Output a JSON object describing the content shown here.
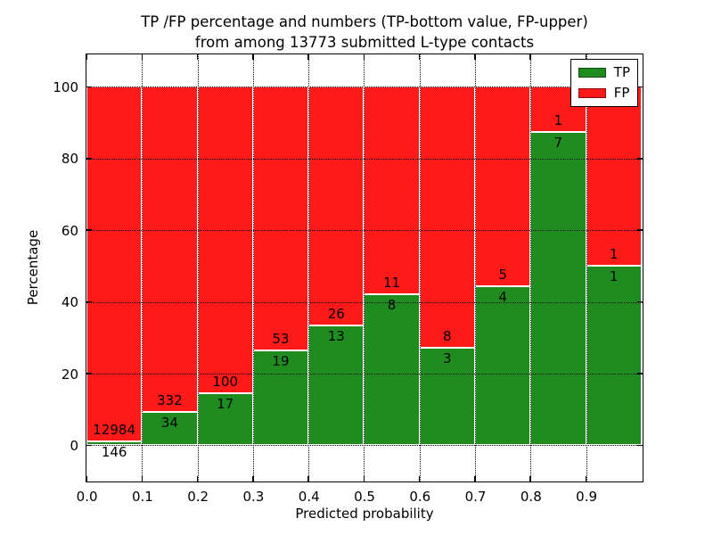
{
  "title": {
    "line1": "TP /FP percentage and numbers (TP-bottom value, FP-upper)",
    "line2": "from among 13773 submitted L-type contacts"
  },
  "axes": {
    "xlabel": "Predicted probability",
    "ylabel": "Percentage",
    "x_ticks": [
      "0.0",
      "0.1",
      "0.2",
      "0.3",
      "0.4",
      "0.5",
      "0.6",
      "0.7",
      "0.8",
      "0.9"
    ],
    "y_ticks": [
      "0",
      "20",
      "40",
      "60",
      "80",
      "100"
    ],
    "y_tick_values": [
      0,
      20,
      40,
      60,
      80,
      100
    ]
  },
  "legend": {
    "items": [
      {
        "label": "TP",
        "color_key": "tp"
      },
      {
        "label": "FP",
        "color_key": "fp"
      }
    ]
  },
  "colors": {
    "tp": "#1e8c1e",
    "fp": "#ff1a1a",
    "grid": "#000000",
    "text": "#000000"
  },
  "chart_data": {
    "type": "bar",
    "stacked": true,
    "normalized_to": 100,
    "title": "TP /FP percentage and numbers (TP-bottom value, FP-upper) from among 13773 submitted L-type contacts",
    "xlabel": "Predicted probability",
    "ylabel": "Percentage",
    "ylim": [
      0,
      100
    ],
    "grid": "dotted",
    "legend_position": "upper right",
    "x_bin_edges": [
      0.0,
      0.1,
      0.2,
      0.3,
      0.4,
      0.5,
      0.6,
      0.7,
      0.8,
      0.9,
      1.0
    ],
    "categories": [
      "0.0-0.1",
      "0.1-0.2",
      "0.2-0.3",
      "0.3-0.4",
      "0.4-0.5",
      "0.5-0.6",
      "0.6-0.7",
      "0.7-0.8",
      "0.8-0.9",
      "0.9-1.0"
    ],
    "series": [
      {
        "name": "TP",
        "counts": [
          146,
          34,
          17,
          19,
          13,
          8,
          3,
          4,
          7,
          1
        ]
      },
      {
        "name": "FP",
        "counts": [
          12984,
          332,
          100,
          53,
          26,
          11,
          8,
          5,
          1,
          1
        ]
      }
    ],
    "tp_percent": [
      1.11,
      9.29,
      14.53,
      26.39,
      33.33,
      42.11,
      27.27,
      44.44,
      87.5,
      50.0
    ],
    "total_submitted": 13773,
    "bar_label_rule": "FP count printed just above the TP-segment top, TP count just below it"
  }
}
